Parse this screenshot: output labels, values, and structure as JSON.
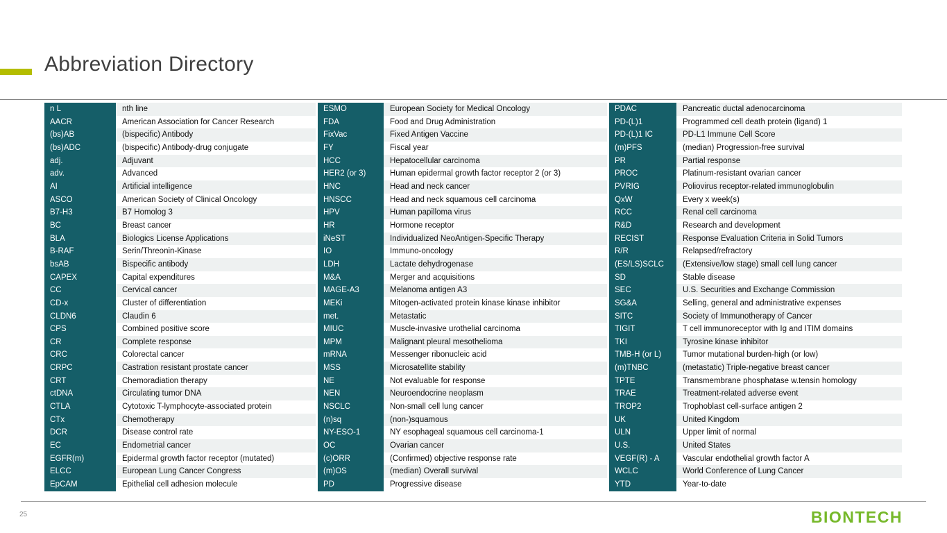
{
  "slide": {
    "title": "Abbreviation Directory",
    "page_number": "25",
    "logo_text": "BIONTECH"
  },
  "colors": {
    "teal": "#155e68",
    "row_alt": "#eef1f1",
    "accent_bar": "#b4bd00",
    "logo_green": "#76b82a",
    "title_gray": "#3f3f3f"
  },
  "columns": [
    {
      "rows": [
        {
          "abbr": "n L",
          "def": "nth line"
        },
        {
          "abbr": "AACR",
          "def": "American Association for Cancer Research"
        },
        {
          "abbr": "(bs)AB",
          "def": "(bispecific) Antibody"
        },
        {
          "abbr": "(bs)ADC",
          "def": "(bispecific) Antibody-drug conjugate"
        },
        {
          "abbr": "adj.",
          "def": "Adjuvant"
        },
        {
          "abbr": "adv.",
          "def": "Advanced"
        },
        {
          "abbr": "AI",
          "def": "Artificial intelligence"
        },
        {
          "abbr": "ASCO",
          "def": "American Society of Clinical Oncology"
        },
        {
          "abbr": "B7-H3",
          "def": "B7 Homolog 3"
        },
        {
          "abbr": "BC",
          "def": "Breast cancer"
        },
        {
          "abbr": "BLA",
          "def": "Biologics License Applications"
        },
        {
          "abbr": "B-RAF",
          "def": "Serin/Threonin-Kinase"
        },
        {
          "abbr": "bsAB",
          "def": "Bispecific antibody"
        },
        {
          "abbr": "CAPEX",
          "def": "Capital expenditures"
        },
        {
          "abbr": "CC",
          "def": "Cervical cancer"
        },
        {
          "abbr": "CD-x",
          "def": "Cluster of differentiation"
        },
        {
          "abbr": "CLDN6",
          "def": "Claudin 6"
        },
        {
          "abbr": "CPS",
          "def": "Combined positive score"
        },
        {
          "abbr": "CR",
          "def": "Complete response"
        },
        {
          "abbr": "CRC",
          "def": "Colorectal cancer"
        },
        {
          "abbr": "CRPC",
          "def": "Castration resistant prostate cancer"
        },
        {
          "abbr": "CRT",
          "def": "Chemoradiation therapy"
        },
        {
          "abbr": "ctDNA",
          "def": "Circulating tumor DNA"
        },
        {
          "abbr": "CTLA",
          "def": "Cytotoxic T-lymphocyte-associated protein"
        },
        {
          "abbr": "CTx",
          "def": "Chemotherapy"
        },
        {
          "abbr": "DCR",
          "def": "Disease control rate"
        },
        {
          "abbr": "EC",
          "def": "Endometrial cancer"
        },
        {
          "abbr": "EGFR(m)",
          "def": "Epidermal growth factor receptor (mutated)"
        },
        {
          "abbr": "ELCC",
          "def": "European Lung Cancer Congress"
        },
        {
          "abbr": "EpCAM",
          "def": "Epithelial cell adhesion molecule"
        }
      ]
    },
    {
      "rows": [
        {
          "abbr": "ESMO",
          "def": "European Society for Medical Oncology"
        },
        {
          "abbr": "FDA",
          "def": "Food and Drug Administration"
        },
        {
          "abbr": "FixVac",
          "def": "Fixed Antigen Vaccine"
        },
        {
          "abbr": "FY",
          "def": "Fiscal year"
        },
        {
          "abbr": "HCC",
          "def": "Hepatocellular carcinoma"
        },
        {
          "abbr": "HER2 (or 3)",
          "def": "Human epidermal growth factor receptor 2 (or 3)"
        },
        {
          "abbr": "HNC",
          "def": "Head and neck cancer"
        },
        {
          "abbr": "HNSCC",
          "def": "Head and neck squamous cell carcinoma"
        },
        {
          "abbr": "HPV",
          "def": "Human papilloma virus"
        },
        {
          "abbr": "HR",
          "def": "Hormone receptor"
        },
        {
          "abbr": "iNeST",
          "def": "Individualized NeoAntigen-Specific Therapy"
        },
        {
          "abbr": "IO",
          "def": "Immuno-oncology"
        },
        {
          "abbr": "LDH",
          "def": "Lactate dehydrogenase"
        },
        {
          "abbr": "M&A",
          "def": "Merger and acquisitions"
        },
        {
          "abbr": "MAGE-A3",
          "def": "Melanoma antigen A3"
        },
        {
          "abbr": "MEKi",
          "def": "Mitogen-activated protein kinase kinase inhibitor"
        },
        {
          "abbr": "met.",
          "def": "Metastatic"
        },
        {
          "abbr": "MIUC",
          "def": "Muscle-invasive urothelial carcinoma"
        },
        {
          "abbr": "MPM",
          "def": "Malignant pleural mesothelioma"
        },
        {
          "abbr": "mRNA",
          "def": "Messenger ribonucleic acid"
        },
        {
          "abbr": "MSS",
          "def": "Microsatellite stability"
        },
        {
          "abbr": "NE",
          "def": "Not evaluable for response"
        },
        {
          "abbr": "NEN",
          "def": "Neuroendocrine neoplasm"
        },
        {
          "abbr": "NSCLC",
          "def": "Non-small cell lung cancer"
        },
        {
          "abbr": "(n)sq",
          "def": "(non-)squamous"
        },
        {
          "abbr": "NY-ESO-1",
          "def": "NY esophageal squamous cell carcinoma-1"
        },
        {
          "abbr": "OC",
          "def": "Ovarian cancer"
        },
        {
          "abbr": "(c)ORR",
          "def": "(Confirmed) objective response rate"
        },
        {
          "abbr": "(m)OS",
          "def": "(median) Overall survival"
        },
        {
          "abbr": "PD",
          "def": "Progressive disease"
        }
      ]
    },
    {
      "rows": [
        {
          "abbr": "PDAC",
          "def": "Pancreatic ductal adenocarcinoma"
        },
        {
          "abbr": "PD-(L)1",
          "def": "Programmed cell death protein (ligand) 1"
        },
        {
          "abbr": "PD-(L)1 IC",
          "def": "PD-L1 Immune Cell Score"
        },
        {
          "abbr": "(m)PFS",
          "def": "(median) Progression-free survival"
        },
        {
          "abbr": "PR",
          "def": "Partial response"
        },
        {
          "abbr": "PROC",
          "def": "Platinum-resistant ovarian cancer"
        },
        {
          "abbr": "PVRIG",
          "def": "Poliovirus receptor-related immunoglobulin"
        },
        {
          "abbr": "QxW",
          "def": "Every x week(s)"
        },
        {
          "abbr": "RCC",
          "def": "Renal cell carcinoma"
        },
        {
          "abbr": "R&D",
          "def": "Research and development"
        },
        {
          "abbr": "RECIST",
          "def": "Response Evaluation Criteria in Solid Tumors"
        },
        {
          "abbr": "R/R",
          "def": "Relapsed/refractory"
        },
        {
          "abbr": "(ES/LS)SCLC",
          "def": "(Extensive/low stage) small cell lung cancer"
        },
        {
          "abbr": "SD",
          "def": "Stable disease"
        },
        {
          "abbr": "SEC",
          "def": "U.S. Securities and Exchange Commission"
        },
        {
          "abbr": "SG&A",
          "def": "Selling, general and administrative expenses"
        },
        {
          "abbr": "SITC",
          "def": "Society of Immunotherapy of Cancer"
        },
        {
          "abbr": "TIGIT",
          "def": "T cell immunoreceptor with Ig and ITIM domains"
        },
        {
          "abbr": "TKI",
          "def": "Tyrosine kinase inhibitor"
        },
        {
          "abbr": "TMB-H (or L)",
          "def": "Tumor mutational burden-high (or low)"
        },
        {
          "abbr": "(m)TNBC",
          "def": "(metastatic) Triple-negative breast cancer"
        },
        {
          "abbr": "TPTE",
          "def": "Transmembrane phosphatase w.tensin homology"
        },
        {
          "abbr": "TRAE",
          "def": "Treatment-related adverse event"
        },
        {
          "abbr": "TROP2",
          "def": "Trophoblast cell-surface antigen 2"
        },
        {
          "abbr": "UK",
          "def": "United Kingdom"
        },
        {
          "abbr": "ULN",
          "def": "Upper limit of normal"
        },
        {
          "abbr": "U.S.",
          "def": "United States"
        },
        {
          "abbr": "VEGF(R) - A",
          "def": "Vascular endothelial growth factor A"
        },
        {
          "abbr": "WCLC",
          "def": "World Conference of Lung Cancer"
        },
        {
          "abbr": "YTD",
          "def": "Year-to-date"
        }
      ]
    }
  ]
}
